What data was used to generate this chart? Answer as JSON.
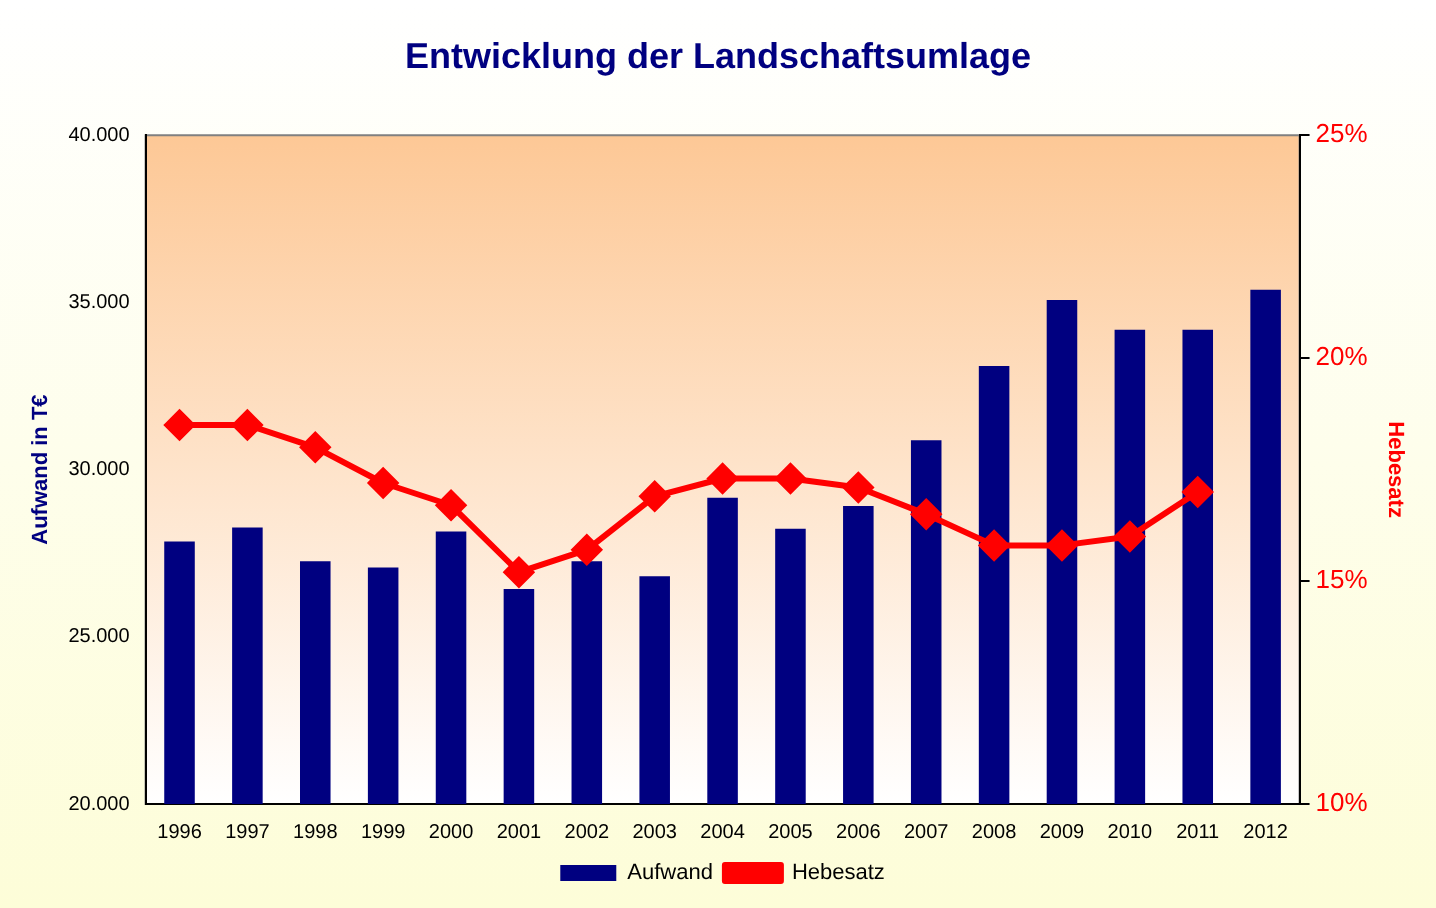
{
  "chart_data": {
    "type": "bar",
    "title": "Entwicklung der Landschaftsumlage",
    "ylabel": "Aufwand in T€",
    "y2label": "Hebesatz",
    "categories": [
      "1996",
      "1997",
      "1998",
      "1999",
      "2000",
      "2001",
      "2002",
      "2003",
      "2004",
      "2005",
      "2006",
      "2007",
      "2008",
      "2009",
      "2010",
      "2011",
      "2012"
    ],
    "series": [
      {
        "name": "Aufwand",
        "color": "#000080",
        "values": [
          27850,
          28270,
          27260,
          27070,
          28150,
          26430,
          27260,
          26810,
          29160,
          28230,
          28910,
          30880,
          33100,
          35070,
          34180,
          34180,
          35380
        ]
      },
      {
        "name": "Hebesatz",
        "type": "line",
        "axis": "y2",
        "color": "#ff0000",
        "marker": "diamond",
        "line_style": "solid",
        "values": [
          18.5,
          18.5,
          18.0,
          17.2,
          16.7,
          15.2,
          15.7,
          16.9,
          17.3,
          17.3,
          17.1,
          16.5,
          15.8,
          15.8,
          16.0,
          17.0,
          null
        ]
      }
    ],
    "ylim": [
      20000,
      40000
    ],
    "yticks": [
      {
        "value": 20000,
        "label": "20.000"
      },
      {
        "value": 25000,
        "label": "25.000"
      },
      {
        "value": 30000,
        "label": "30.000"
      },
      {
        "value": 35000,
        "label": "35.000"
      },
      {
        "value": 40000,
        "label": "40.000"
      }
    ],
    "y2lim": [
      10,
      25
    ],
    "y2ticks": [
      {
        "value": 10,
        "label": "10%"
      },
      {
        "value": 15,
        "label": "15%"
      },
      {
        "value": 20,
        "label": "20%"
      },
      {
        "value": 25,
        "label": "25%"
      }
    ],
    "grid": false,
    "legend": "bottom"
  }
}
